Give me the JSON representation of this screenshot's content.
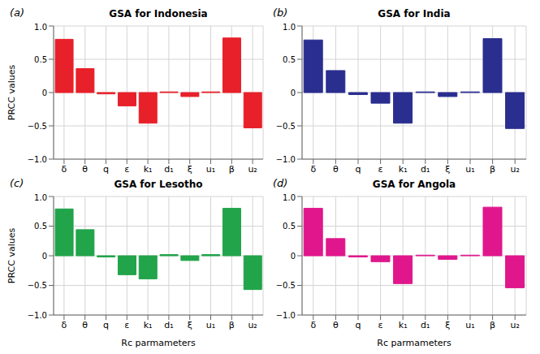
{
  "chart_data": [
    {
      "type": "bar",
      "panel": "(a)",
      "title": "GSA for Indonesia",
      "ylabel": "PRCC values",
      "categories": [
        "δ",
        "θ",
        "q",
        "ε",
        "k₁",
        "d₁",
        "ξ",
        "u₁",
        "β",
        "u₂"
      ],
      "values": [
        0.8,
        0.36,
        -0.02,
        -0.2,
        -0.46,
        0.01,
        -0.06,
        0.01,
        0.82,
        -0.53
      ],
      "color": "#e8202a",
      "ylim": [
        -1,
        1
      ],
      "yticks": [
        {
          "value": -1,
          "label": "−1.0"
        },
        {
          "value": -0.5,
          "label": "−0.5"
        },
        0,
        0.5,
        {
          "value": 1,
          "label": "1.0"
        }
      ],
      "grid": true
    },
    {
      "type": "bar",
      "panel": "(b)",
      "title": "GSA for India",
      "categories": [
        "δ",
        "θ",
        "q",
        "ε",
        "k₁",
        "d₁",
        "ξ",
        "u₁",
        "β",
        "u₂"
      ],
      "values": [
        0.79,
        0.33,
        -0.03,
        -0.16,
        -0.46,
        0.01,
        -0.06,
        0.01,
        0.81,
        -0.54
      ],
      "color": "#2a2e8f",
      "ylim": [
        -1,
        1
      ],
      "yticks": [
        {
          "value": -1,
          "label": "−1.0"
        },
        {
          "value": -0.5,
          "label": "−0.5"
        },
        0,
        0.5,
        {
          "value": 1,
          "label": "1.0"
        }
      ],
      "grid": true
    },
    {
      "type": "bar",
      "panel": "(c)",
      "title": "GSA for Lesotho",
      "ylabel": "PRCC values",
      "xlabel": "Rc parmameters",
      "categories": [
        "δ",
        "θ",
        "q",
        "ε",
        "k₁",
        "d₁",
        "ξ",
        "u₁",
        "β",
        "u₂"
      ],
      "values": [
        0.79,
        0.44,
        -0.02,
        -0.32,
        -0.39,
        0.02,
        -0.08,
        0.02,
        0.8,
        -0.57
      ],
      "color": "#22a44a",
      "ylim": [
        -1,
        1
      ],
      "yticks": [
        {
          "value": -1,
          "label": "−1.0"
        },
        {
          "value": -0.5,
          "label": "−0.5"
        },
        0,
        0.5,
        {
          "value": 1,
          "label": "1.0"
        }
      ],
      "grid": true
    },
    {
      "type": "bar",
      "panel": "(d)",
      "title": "GSA for Angola",
      "xlabel": "Rc parmameters",
      "categories": [
        "δ",
        "θ",
        "q",
        "ε",
        "k₁",
        "d₁",
        "ξ",
        "u₁",
        "β",
        "u₂"
      ],
      "values": [
        0.8,
        0.29,
        -0.02,
        -0.1,
        -0.47,
        0.01,
        -0.06,
        0.01,
        0.82,
        -0.54
      ],
      "color": "#e0168c",
      "ylim": [
        -1,
        1
      ],
      "yticks": [
        {
          "value": -1,
          "label": "−1.0"
        },
        {
          "value": -0.5,
          "label": "−0.5"
        },
        0,
        0.5,
        {
          "value": 1,
          "label": "1.0"
        }
      ],
      "grid": true
    }
  ]
}
